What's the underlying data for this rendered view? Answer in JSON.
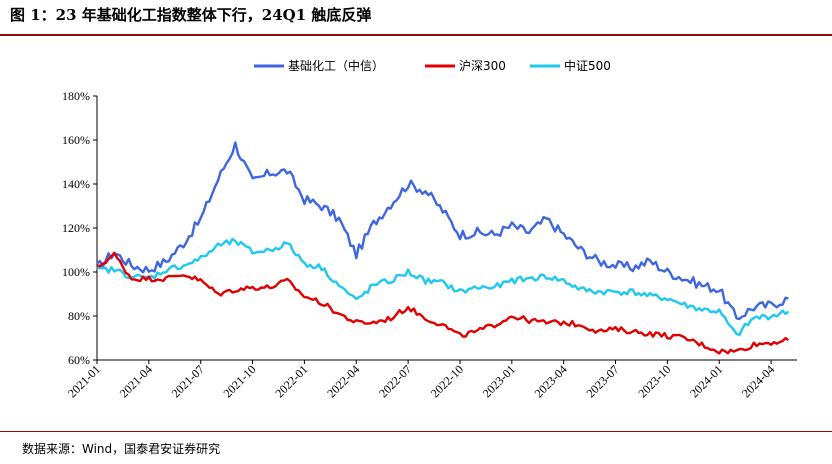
{
  "figure": {
    "title": "图 1：23 年基础化工指数整体下行，24Q1 触底反弹",
    "source": "数据来源：Wind，国泰君安证券研究"
  },
  "chart_data": {
    "type": "line",
    "title": "",
    "xlabel": "",
    "ylabel": "",
    "ylim": [
      60,
      180
    ],
    "yticks": [
      "60%",
      "80%",
      "100%",
      "120%",
      "140%",
      "160%",
      "180%"
    ],
    "xticks": [
      "2021-01",
      "2021-04",
      "2021-07",
      "2021-10",
      "2022-01",
      "2022-04",
      "2022-07",
      "2022-10",
      "2023-01",
      "2023-04",
      "2023-07",
      "2023-10",
      "2024-01",
      "2024-04"
    ],
    "legend_position": "top",
    "grid": false,
    "x": [
      "2021-01",
      "2021-02",
      "2021-03",
      "2021-04",
      "2021-05",
      "2021-06",
      "2021-07",
      "2021-08",
      "2021-09",
      "2021-10",
      "2021-11",
      "2021-12",
      "2022-01",
      "2022-02",
      "2022-03",
      "2022-04",
      "2022-05",
      "2022-06",
      "2022-07",
      "2022-08",
      "2022-09",
      "2022-10",
      "2022-11",
      "2022-12",
      "2023-01",
      "2023-02",
      "2023-03",
      "2023-04",
      "2023-05",
      "2023-06",
      "2023-07",
      "2023-08",
      "2023-09",
      "2023-10",
      "2023-11",
      "2023-12",
      "2024-01",
      "2024-02",
      "2024-03",
      "2024-04",
      "2024-05"
    ],
    "series": [
      {
        "name": "基础化工（中信）",
        "color": "#3f66e0",
        "values": [
          102,
          109,
          103,
          101,
          105,
          113,
          124,
          142,
          158,
          141,
          145,
          146,
          133,
          130,
          124,
          108,
          122,
          131,
          140,
          137,
          128,
          117,
          118,
          117,
          121,
          118,
          124,
          117,
          110,
          105,
          103,
          102,
          105,
          100,
          97,
          94,
          92,
          79,
          84,
          85,
          88
        ]
      },
      {
        "name": "沪深300",
        "color": "#e00000",
        "values": [
          102,
          108,
          97,
          97,
          97,
          99,
          96,
          90,
          92,
          93,
          93,
          96,
          89,
          86,
          81,
          77,
          77,
          79,
          84,
          79,
          76,
          71,
          73,
          76,
          80,
          78,
          77,
          77,
          76,
          73,
          74,
          73,
          72,
          71,
          70,
          67,
          64,
          64,
          67,
          68,
          69
        ]
      },
      {
        "name": "中证500",
        "color": "#1ec8ee",
        "values": [
          101,
          101,
          98,
          97,
          101,
          103,
          106,
          112,
          114,
          109,
          110,
          113,
          104,
          102,
          94,
          87,
          94,
          96,
          100,
          96,
          95,
          91,
          93,
          93,
          96,
          97,
          98,
          96,
          92,
          91,
          91,
          91,
          89,
          88,
          85,
          83,
          82,
          71,
          79,
          80,
          82
        ]
      }
    ]
  }
}
